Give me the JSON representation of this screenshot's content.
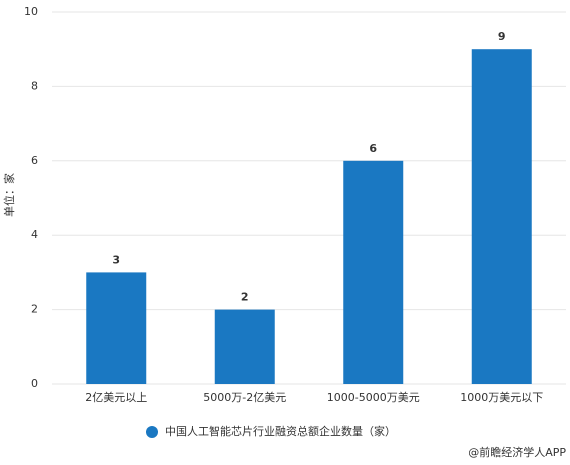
{
  "chart_data": {
    "type": "bar",
    "legend_label": "中国人工智能芯片行业融资总额企业数量（家）",
    "y_label": "单位：家",
    "source": "@前瞻经济学人APP",
    "categories": [
      "2亿美元以上",
      "5000万-2亿美元",
      "1000-5000万美元",
      "1000万美元以下"
    ],
    "values": [
      3,
      2,
      6,
      9
    ],
    "color": "#1a78c2",
    "ylim": [
      0,
      10
    ],
    "yticks": [
      0,
      2,
      4,
      6,
      8,
      10
    ],
    "grid": true
  }
}
